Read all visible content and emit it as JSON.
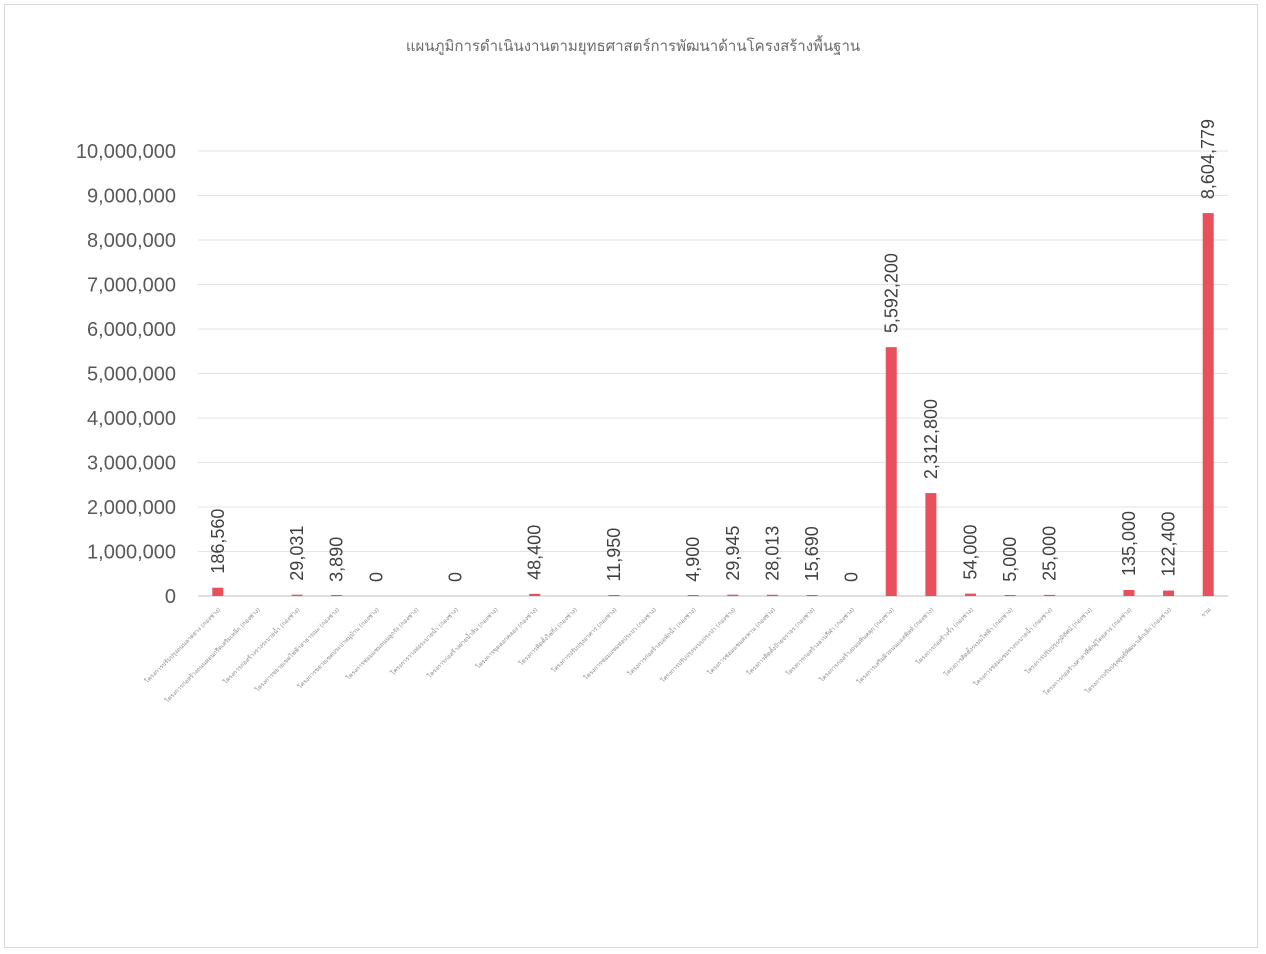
{
  "chart_data": {
    "type": "bar",
    "title": "แผนภูมิการดำเนินงานตามยุทธศาสตร์การพัฒนาด้านโครงสร้างพื้นฐาน",
    "xlabel": "",
    "ylabel": "",
    "ylim": [
      0,
      10000000
    ],
    "yticks": [
      "0",
      "1,000,000",
      "2,000,000",
      "3,000,000",
      "4,000,000",
      "5,000,000",
      "6,000,000",
      "7,000,000",
      "8,000,000",
      "9,000,000",
      "10,000,000"
    ],
    "grid": true,
    "legend": "none",
    "bar_color": "#e8505b",
    "categories": [
      "โครงการปรับปรุงถนนลาดยาง (กองช่าง)",
      "โครงการก่อสร้างถนนคอนกรีตเสริมเหล็ก (กองช่าง)",
      "โครงการก่อสร้างรางระบายน้ำ (กองช่าง)",
      "โครงการขยายเขตไฟฟ้าสาธารณะ (กองช่าง)",
      "โครงการขยายเขตประปาหมู่บ้าน (กองช่าง)",
      "โครงการซ่อมแซมถนนลูกรัง (กองช่าง)",
      "โครงการวางท่อระบายน้ำ (กองช่าง)",
      "โครงการก่อสร้างฝายน้ำล้น (กองช่าง)",
      "โครงการขุดลอกคลอง (กองช่าง)",
      "โครงการติดตั้งไฟกิ่ง (กองช่าง)",
      "โครงการปรับปรุงอาคาร (กองช่าง)",
      "โครงการซ่อมแซมท่อประปา (กองช่าง)",
      "โครงการก่อสร้างบ่อพักน้ำ (กองช่าง)",
      "โครงการปรับปรุงระบบประปา (กองช่าง)",
      "โครงการซ่อมแซมสะพาน (กองช่าง)",
      "โครงการติดตั้งป้ายจราจร (กองช่าง)",
      "โครงการก่อสร้างลานกีฬา (กองช่าง)",
      "โครงการก่อสร้างถนนหินคลุก (กองช่าง)",
      "โครงการเสริมผิวถนนแอสฟัลท์ (กองช่าง)",
      "โครงการก่อสร้างรั้ว (กองช่าง)",
      "โครงการติดตั้งระบบไฟฟ้า (กองช่าง)",
      "โครงการซ่อมแซมรางระบายน้ำ (กองช่าง)",
      "โครงการปรับปรุงภูมิทัศน์ (กองช่าง)",
      "โครงการก่อสร้างศาลาที่พักผู้โดยสาร (กองช่าง)",
      "โครงการปรับปรุงศูนย์พัฒนาเด็กเล็ก (กองช่าง)",
      "รวม"
    ],
    "values": [
      186560,
      null,
      29031,
      3890,
      0,
      null,
      0,
      null,
      48400,
      null,
      11950,
      null,
      4900,
      29945,
      28013,
      15690,
      0,
      5592200,
      2312800,
      54000,
      5000,
      25000,
      null,
      135000,
      122400,
      8604779
    ],
    "data_labels": [
      "186,560",
      "",
      "29,031",
      "3,890",
      "0",
      "",
      "0",
      "",
      "48,400",
      "",
      "11,950",
      "",
      "4,900",
      "29,945",
      "28,013",
      "15,690",
      "0",
      "5,592,200",
      "2,312,800",
      "54,000",
      "5,000",
      "25,000",
      "",
      "135,000",
      "122,400",
      "8,604,779"
    ]
  }
}
